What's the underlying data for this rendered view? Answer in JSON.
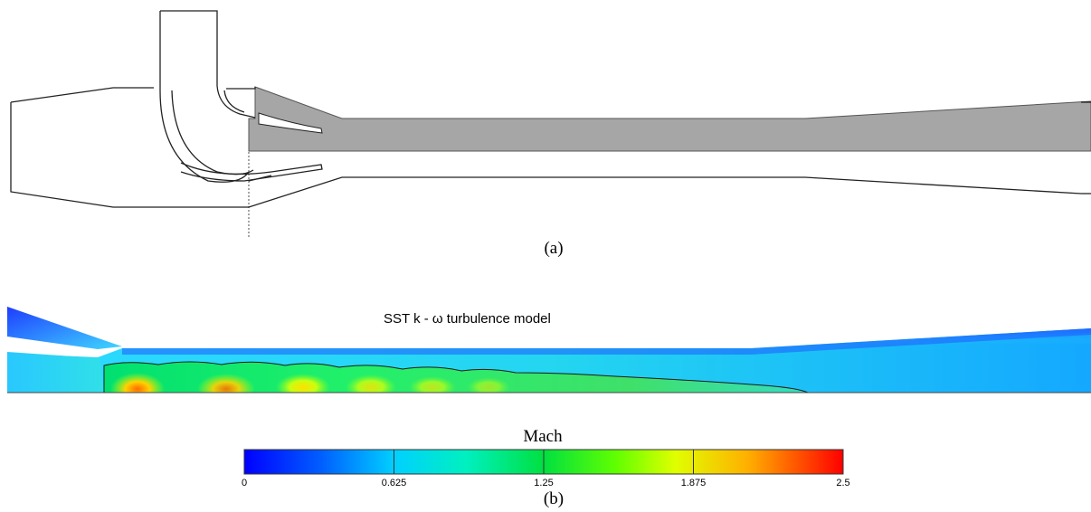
{
  "panel_a": {
    "caption": "(a)"
  },
  "panel_b": {
    "caption": "(b)",
    "model_label": "SST k - ω turbulence model",
    "colorbar": {
      "title": "Mach",
      "ticks": [
        "0",
        "0.625",
        "1.25",
        "1.875",
        "2.5"
      ],
      "range": [
        0,
        2.5
      ],
      "colors": [
        "#0000ff",
        "#00a0ff",
        "#00ffff",
        "#00e070",
        "#00ff00",
        "#ccff00",
        "#ffff00",
        "#ff9900",
        "#ff0000"
      ]
    }
  },
  "colors": {
    "outline": "#222222",
    "fill_gray": "#a6a6a6",
    "background": "#ffffff"
  }
}
